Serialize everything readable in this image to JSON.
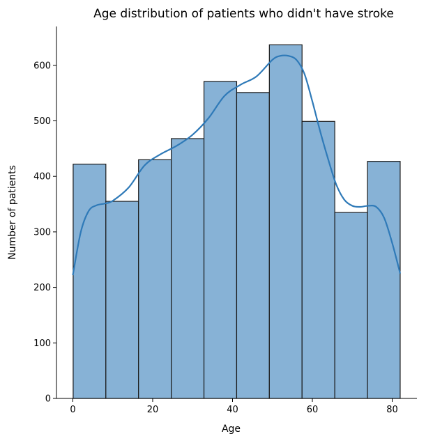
{
  "chart_data": {
    "type": "bar",
    "title": "Age distribution of patients who didn't have stroke",
    "xlabel": "Age",
    "ylabel": "Number of patients",
    "xlim": [
      -4.1,
      86.2
    ],
    "ylim": [
      0,
      670
    ],
    "x_ticks": [
      0,
      20,
      40,
      60,
      80
    ],
    "y_ticks": [
      0,
      100,
      200,
      300,
      400,
      500,
      600
    ],
    "bins": [
      {
        "start": 0.08,
        "end": 8.27,
        "value": 422
      },
      {
        "start": 8.27,
        "end": 16.46,
        "value": 355
      },
      {
        "start": 16.46,
        "end": 24.66,
        "value": 430
      },
      {
        "start": 24.66,
        "end": 32.85,
        "value": 468
      },
      {
        "start": 32.85,
        "end": 41.04,
        "value": 571
      },
      {
        "start": 41.04,
        "end": 49.23,
        "value": 551
      },
      {
        "start": 49.23,
        "end": 57.42,
        "value": 637
      },
      {
        "start": 57.42,
        "end": 65.62,
        "value": 499
      },
      {
        "start": 65.62,
        "end": 73.81,
        "value": 335
      },
      {
        "start": 73.81,
        "end": 82.0,
        "value": 427
      }
    ],
    "kde": {
      "x": [
        0,
        2,
        4,
        6,
        8,
        10,
        14,
        18,
        22,
        26,
        30,
        34,
        38,
        42,
        46,
        50,
        52,
        54,
        56,
        58,
        60,
        62,
        64,
        66,
        68,
        70,
        72,
        74,
        76,
        78,
        80,
        82
      ],
      "y": [
        222,
        300,
        338,
        348,
        351,
        356,
        380,
        420,
        440,
        455,
        475,
        505,
        545,
        565,
        580,
        610,
        617,
        617,
        610,
        585,
        535,
        480,
        430,
        385,
        358,
        347,
        345,
        347,
        345,
        325,
        280,
        225
      ]
    },
    "grid": false,
    "legend": "none"
  }
}
